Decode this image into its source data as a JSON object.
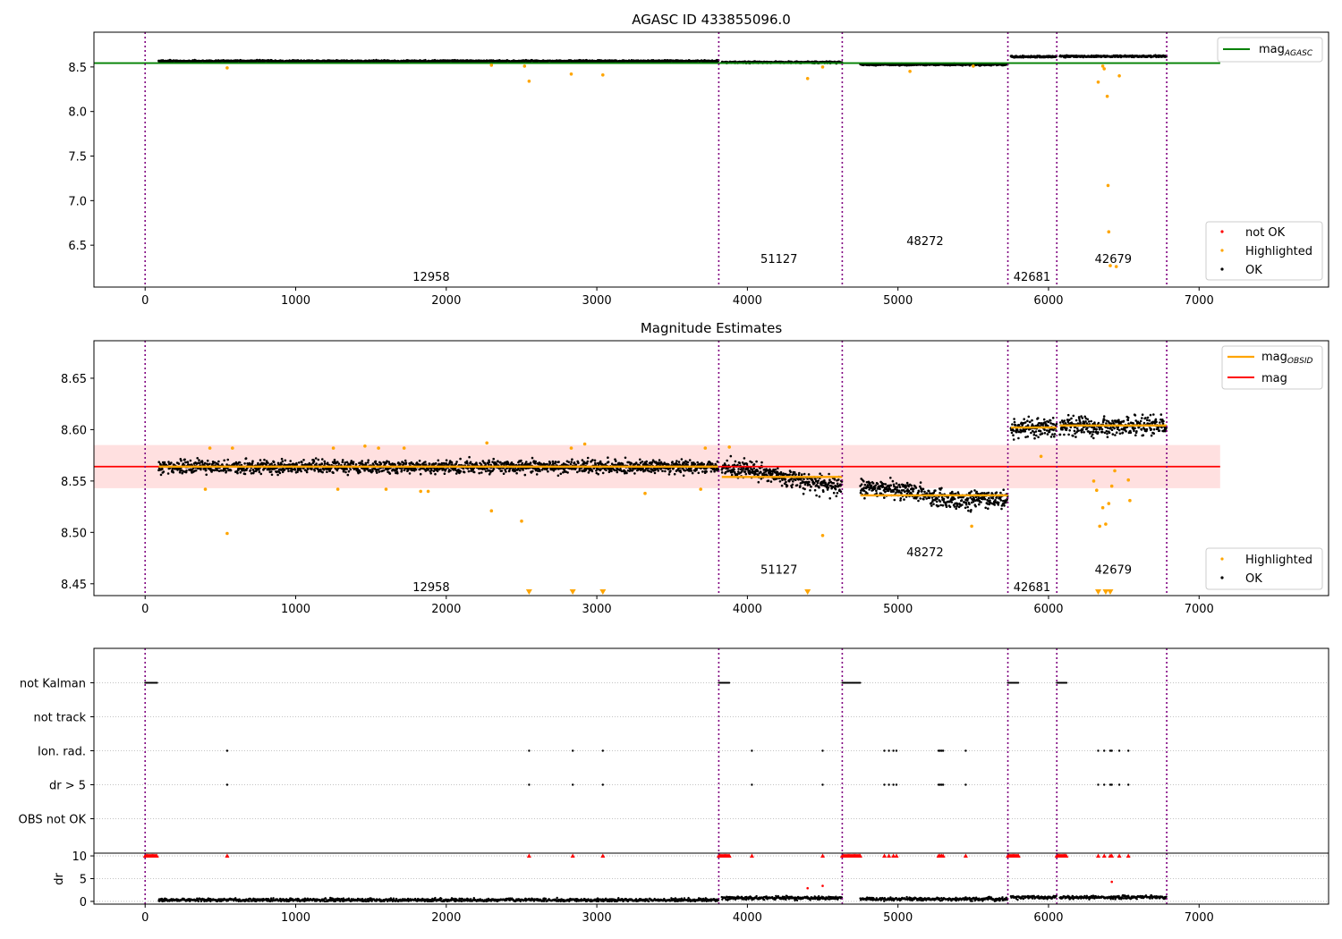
{
  "chart_data": [
    {
      "type": "scatter",
      "title": "AGASC ID 433855096.0",
      "xlim": [
        -340,
        7860
      ],
      "ylim": [
        6.03,
        8.89
      ],
      "xticks": [
        0,
        1000,
        2000,
        3000,
        4000,
        5000,
        6000,
        7000
      ],
      "yticks": [
        6.5,
        7.0,
        7.5,
        8.0,
        8.5
      ],
      "ytick_labels": [
        "6.5",
        "7.0",
        "7.5",
        "8.0",
        "8.5"
      ],
      "grid": false,
      "obs_boundaries": [
        0,
        3810,
        4630,
        5730,
        6055,
        6785
      ],
      "obs_labels": [
        {
          "text": "12958",
          "x": 1900,
          "y": 6.15
        },
        {
          "text": "51127",
          "x": 4210,
          "y": 6.35
        },
        {
          "text": "48272",
          "x": 5180,
          "y": 6.55
        },
        {
          "text": "42681",
          "x": 5890,
          "y": 6.15
        },
        {
          "text": "42679",
          "x": 6430,
          "y": 6.35
        }
      ],
      "mag_agasc": 8.543,
      "mag_agasc_x": [
        -340,
        7140
      ],
      "segments": [
        {
          "x": [
            90,
            3810
          ],
          "y": 8.565
        },
        {
          "x": [
            3830,
            4630
          ],
          "y": 8.555
        },
        {
          "x": [
            4750,
            5730
          ],
          "y": 8.537
        },
        {
          "x": [
            5750,
            6055
          ],
          "y": 8.602
        },
        {
          "x": [
            6075,
            6785
          ],
          "y": 8.605
        }
      ],
      "highlighted": [
        [
          545,
          8.49
        ],
        [
          2300,
          8.52
        ],
        [
          2520,
          8.51
        ],
        [
          2550,
          8.34
        ],
        [
          2830,
          8.42
        ],
        [
          3040,
          8.41
        ],
        [
          4400,
          8.37
        ],
        [
          4500,
          8.5
        ],
        [
          5080,
          8.45
        ],
        [
          5500,
          8.51
        ],
        [
          6330,
          8.33
        ],
        [
          6360,
          8.51
        ],
        [
          6370,
          8.48
        ],
        [
          6390,
          8.17
        ],
        [
          6395,
          7.17
        ],
        [
          6400,
          6.65
        ],
        [
          6410,
          6.27
        ],
        [
          6450,
          6.26
        ],
        [
          6470,
          8.4
        ]
      ],
      "legend_upper": {
        "position": "upper-right",
        "entries": [
          {
            "label": "mag",
            "sub": "AGASC",
            "color": "#008000"
          }
        ]
      },
      "legend_lower": {
        "position": "lower-right",
        "entries": [
          {
            "label": "not OK",
            "color": "#ff0000"
          },
          {
            "label": "Highlighted",
            "color": "#ffa500"
          },
          {
            "label": "OK",
            "color": "#000000"
          }
        ]
      }
    },
    {
      "type": "scatter",
      "title": "Magnitude Estimates",
      "xlim": [
        -340,
        7860
      ],
      "ylim": [
        8.4385,
        8.6865
      ],
      "xticks": [
        0,
        1000,
        2000,
        3000,
        4000,
        5000,
        6000,
        7000
      ],
      "yticks": [
        8.45,
        8.5,
        8.55,
        8.6,
        8.65
      ],
      "ytick_labels": [
        "8.45",
        "8.50",
        "8.55",
        "8.60",
        "8.65"
      ],
      "grid": false,
      "obs_boundaries": [
        0,
        3810,
        4630,
        5730,
        6055,
        6785
      ],
      "obs_labels": [
        {
          "text": "12958",
          "x": 1900,
          "y": 8.447
        },
        {
          "text": "51127",
          "x": 4210,
          "y": 8.464
        },
        {
          "text": "48272",
          "x": 5180,
          "y": 8.481
        },
        {
          "text": "42681",
          "x": 5890,
          "y": 8.447
        },
        {
          "text": "42679",
          "x": 6430,
          "y": 8.464
        }
      ],
      "mag": 8.564,
      "mag_band": [
        8.543,
        8.585
      ],
      "mag_x": [
        -340,
        7140
      ],
      "segments": [
        {
          "x": [
            90,
            3810
          ],
          "y": 8.564
        },
        {
          "x": [
            3830,
            4630
          ],
          "y": 8.554
        },
        {
          "x": [
            4750,
            5730
          ],
          "y": 8.536
        },
        {
          "x": [
            5750,
            6055
          ],
          "y": 8.602
        },
        {
          "x": [
            6075,
            6785
          ],
          "y": 8.604
        }
      ],
      "highlighted": [
        [
          430,
          8.582
        ],
        [
          400,
          8.542
        ],
        [
          545,
          8.499
        ],
        [
          580,
          8.582
        ],
        [
          1250,
          8.582
        ],
        [
          1280,
          8.542
        ],
        [
          1460,
          8.584
        ],
        [
          1550,
          8.582
        ],
        [
          1600,
          8.542
        ],
        [
          1720,
          8.582
        ],
        [
          1830,
          8.54
        ],
        [
          1880,
          8.54
        ],
        [
          2270,
          8.587
        ],
        [
          2300,
          8.521
        ],
        [
          2500,
          8.511
        ],
        [
          2830,
          8.582
        ],
        [
          2920,
          8.586
        ],
        [
          3320,
          8.538
        ],
        [
          3690,
          8.542
        ],
        [
          3720,
          8.582
        ],
        [
          3880,
          8.583
        ],
        [
          4500,
          8.497
        ],
        [
          5490,
          8.506
        ],
        [
          5950,
          8.574
        ],
        [
          6300,
          8.55
        ],
        [
          6320,
          8.541
        ],
        [
          6340,
          8.506
        ],
        [
          6360,
          8.524
        ],
        [
          6380,
          8.508
        ],
        [
          6400,
          8.528
        ],
        [
          6420,
          8.545
        ],
        [
          6440,
          8.56
        ],
        [
          6530,
          8.551
        ],
        [
          6540,
          8.531
        ]
      ],
      "clipped_low": [
        2550,
        2840,
        3040,
        4400,
        6330,
        6380,
        6410
      ],
      "legend_upper": {
        "position": "upper-right",
        "entries": [
          {
            "label": "mag",
            "sub": "OBSID",
            "color": "#ffa500"
          },
          {
            "label": "mag",
            "color": "#ff0000"
          }
        ]
      },
      "legend_lower": {
        "position": "lower-right",
        "entries": [
          {
            "label": "Highlighted",
            "color": "#ffa500"
          },
          {
            "label": "OK",
            "color": "#000000"
          }
        ]
      }
    },
    {
      "type": "scatter",
      "title": "",
      "xlim": [
        -340,
        7860
      ],
      "categories": [
        "not Kalman",
        "not track",
        "Ion. rad.",
        "dr > 5",
        "OBS not OK"
      ],
      "grid": true,
      "obs_boundaries": [
        0,
        3810,
        4630,
        5730,
        6055,
        6785
      ],
      "flags": {
        "not Kalman": [
          [
            0,
            80
          ],
          [
            3810,
            3880
          ],
          [
            4630,
            4750
          ],
          [
            5730,
            5800
          ],
          [
            6055,
            6120
          ]
        ],
        "not track": [],
        "Ion. rad.": [
          545,
          2550,
          2840,
          3040,
          4030,
          4500,
          4910,
          4940,
          4970,
          4990,
          5270,
          5280,
          5290,
          5300,
          5450,
          6330,
          6370,
          6410,
          6420,
          6470,
          6530
        ],
        "dr > 5": [
          545,
          2550,
          2840,
          3040,
          4030,
          4500,
          4910,
          4940,
          4970,
          4990,
          5270,
          5280,
          5290,
          5300,
          5450,
          6330,
          6370,
          6410,
          6420,
          6470,
          6530
        ],
        "OBS not OK": []
      }
    },
    {
      "type": "scatter",
      "title": "",
      "ylabel": "dr",
      "xlim": [
        -340,
        7860
      ],
      "ylim": [
        -0.6,
        10.6
      ],
      "xticks": [
        0,
        1000,
        2000,
        3000,
        4000,
        5000,
        6000,
        7000
      ],
      "yticks": [
        0,
        5,
        10
      ],
      "ytick_labels": [
        "0",
        "5",
        "10"
      ],
      "grid": true,
      "obs_boundaries": [
        0,
        3810,
        4630,
        5730,
        6055,
        6785
      ],
      "levels": [
        {
          "x": [
            90,
            3810
          ],
          "y": 0.3
        },
        {
          "x": [
            3830,
            4630
          ],
          "y": 0.75
        },
        {
          "x": [
            4750,
            5730
          ],
          "y": 0.5
        },
        {
          "x": [
            5750,
            6055
          ],
          "y": 0.9
        },
        {
          "x": [
            6075,
            6785
          ],
          "y": 0.9
        }
      ],
      "clipped_high": [
        [
          0,
          80
        ],
        [
          3810,
          3880
        ],
        [
          4630,
          4750
        ],
        [
          5730,
          5800
        ],
        [
          6055,
          6120
        ],
        545,
        2550,
        2840,
        3040,
        4030,
        4500,
        4910,
        4940,
        4970,
        4990,
        5270,
        5280,
        5290,
        5300,
        5450,
        6330,
        6370,
        6410,
        6420,
        6470,
        6530
      ],
      "red_points": [
        [
          4400,
          2.9
        ],
        [
          4500,
          3.4
        ],
        [
          6420,
          4.3
        ]
      ]
    }
  ]
}
